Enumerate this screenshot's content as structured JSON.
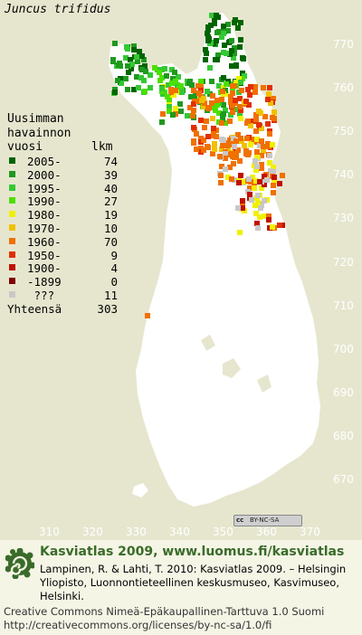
{
  "species": "Juncus trifidus",
  "legend": {
    "header": [
      "Uusimman",
      "havainnon",
      "vuosi"
    ],
    "count_header": "lkm",
    "rows": [
      {
        "label": "2005-",
        "count": "74",
        "color": "#006400"
      },
      {
        "label": "2000-",
        "count": "39",
        "color": "#1f991f"
      },
      {
        "label": "1995-",
        "count": "40",
        "color": "#34c834"
      },
      {
        "label": "1990-",
        "count": "27",
        "color": "#4ce000"
      },
      {
        "label": "1980-",
        "count": "19",
        "color": "#f0f000"
      },
      {
        "label": "1970-",
        "count": "10",
        "color": "#f0c000"
      },
      {
        "label": "1960-",
        "count": "70",
        "color": "#f07000"
      },
      {
        "label": "1950-",
        "count": "9",
        "color": "#e03000"
      },
      {
        "label": "1900-",
        "count": "4",
        "color": "#c01000"
      },
      {
        "label": "-1899",
        "count": "0",
        "color": "#800000"
      },
      {
        "label": " ???",
        "count": "11",
        "color": "#c8c8c8"
      }
    ],
    "total_label": "Yhteensä",
    "total_count": "303"
  },
  "map": {
    "y_ticks": [
      "770",
      "760",
      "750",
      "740",
      "730",
      "720",
      "710",
      "700",
      "690",
      "680",
      "670"
    ],
    "x_ticks": [
      "310",
      "320",
      "330",
      "340",
      "350",
      "360",
      "370"
    ],
    "land_color": "#ffffff",
    "sea_color": "#e6e6cf"
  },
  "license_badge": {
    "cc": "cc",
    "text": "BY-NC-SA"
  },
  "footer": {
    "title": "Kasviatlas 2009, www.luomus.fi/kasviatlas",
    "citation": "Lampinen, R. & Lahti, T. 2010: Kasviatlas 2009. – Helsingin Yliopisto, Luonnontieteellinen keskusmuseo, Kasvimuseo, Helsinki.",
    "license_line1": "Creative Commons Nimeä-Epäkaupallinen-Tarttuva 1.0 Suomi",
    "license_line2": "http://creativecommons.org/licenses/by-nc-sa/1.0/fi",
    "title_color": "#3a6b2a"
  }
}
